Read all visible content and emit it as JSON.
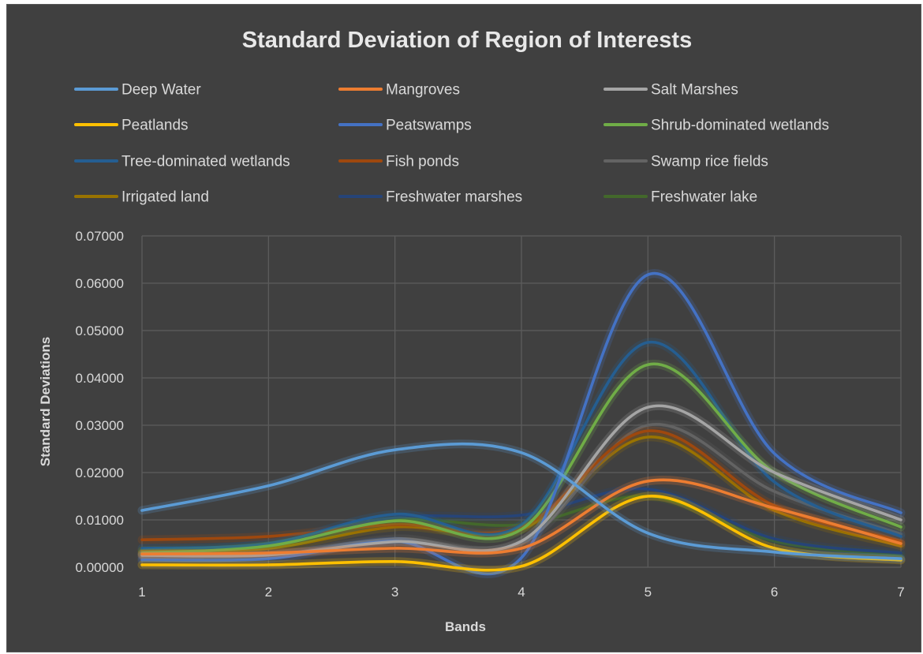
{
  "chart_data": {
    "type": "line",
    "title": "Standard Deviation of Region of Interests",
    "xlabel": "Bands",
    "ylabel": "Standard Deviations",
    "x": [
      1,
      2,
      3,
      4,
      5,
      6,
      7
    ],
    "x_tick_labels": [
      "1",
      "2",
      "3",
      "4",
      "5",
      "6",
      "7"
    ],
    "y_tick_labels": [
      "0.00000",
      "0.01000",
      "0.02000",
      "0.03000",
      "0.04000",
      "0.05000",
      "0.06000",
      "0.07000"
    ],
    "ylim": [
      0,
      0.07
    ],
    "xlim": [
      1,
      7
    ],
    "grid": true,
    "smooth": true,
    "legend_position": "top",
    "series": [
      {
        "name": "Deep Water",
        "color": "#5b9bd5",
        "values": [
          0.012,
          0.0172,
          0.0248,
          0.0242,
          0.0072,
          0.0032,
          0.0018
        ]
      },
      {
        "name": "Mangroves",
        "color": "#ed7d31",
        "values": [
          0.0028,
          0.003,
          0.004,
          0.004,
          0.0182,
          0.0125,
          0.005
        ]
      },
      {
        "name": "Salt Marshes",
        "color": "#a5a5a5",
        "values": [
          0.0025,
          0.0026,
          0.0054,
          0.0055,
          0.0338,
          0.02,
          0.01
        ]
      },
      {
        "name": "Peatlands",
        "color": "#ffc000",
        "values": [
          0.0005,
          0.0005,
          0.0012,
          0.0002,
          0.015,
          0.004,
          0.0015
        ]
      },
      {
        "name": "Peatswamps",
        "color": "#4472c4",
        "values": [
          0.0015,
          0.0018,
          0.0055,
          0.002,
          0.0618,
          0.024,
          0.0115
        ]
      },
      {
        "name": "Shrub-dominated wetlands",
        "color": "#70ad47",
        "values": [
          0.003,
          0.0045,
          0.0098,
          0.008,
          0.0428,
          0.02,
          0.0085
        ]
      },
      {
        "name": "Tree-dominated wetlands",
        "color": "#255e91",
        "values": [
          0.004,
          0.005,
          0.0112,
          0.009,
          0.0475,
          0.018,
          0.0065
        ]
      },
      {
        "name": "Fish ponds",
        "color": "#9e480e",
        "values": [
          0.0058,
          0.0065,
          0.009,
          0.0085,
          0.0288,
          0.013,
          0.0055
        ]
      },
      {
        "name": "Swamp rice fields",
        "color": "#636363",
        "values": [
          0.002,
          0.0025,
          0.006,
          0.005,
          0.03,
          0.016,
          0.007
        ]
      },
      {
        "name": "Irrigated land",
        "color": "#997300",
        "values": [
          0.0035,
          0.004,
          0.0085,
          0.008,
          0.0275,
          0.012,
          0.0045
        ]
      },
      {
        "name": "Freshwater marshes",
        "color": "#264478",
        "values": [
          0.003,
          0.005,
          0.0105,
          0.011,
          0.0165,
          0.006,
          0.003
        ]
      },
      {
        "name": "Freshwater lake",
        "color": "#43682b",
        "values": [
          0.0035,
          0.0048,
          0.01,
          0.009,
          0.015,
          0.0055,
          0.0025
        ]
      }
    ]
  }
}
